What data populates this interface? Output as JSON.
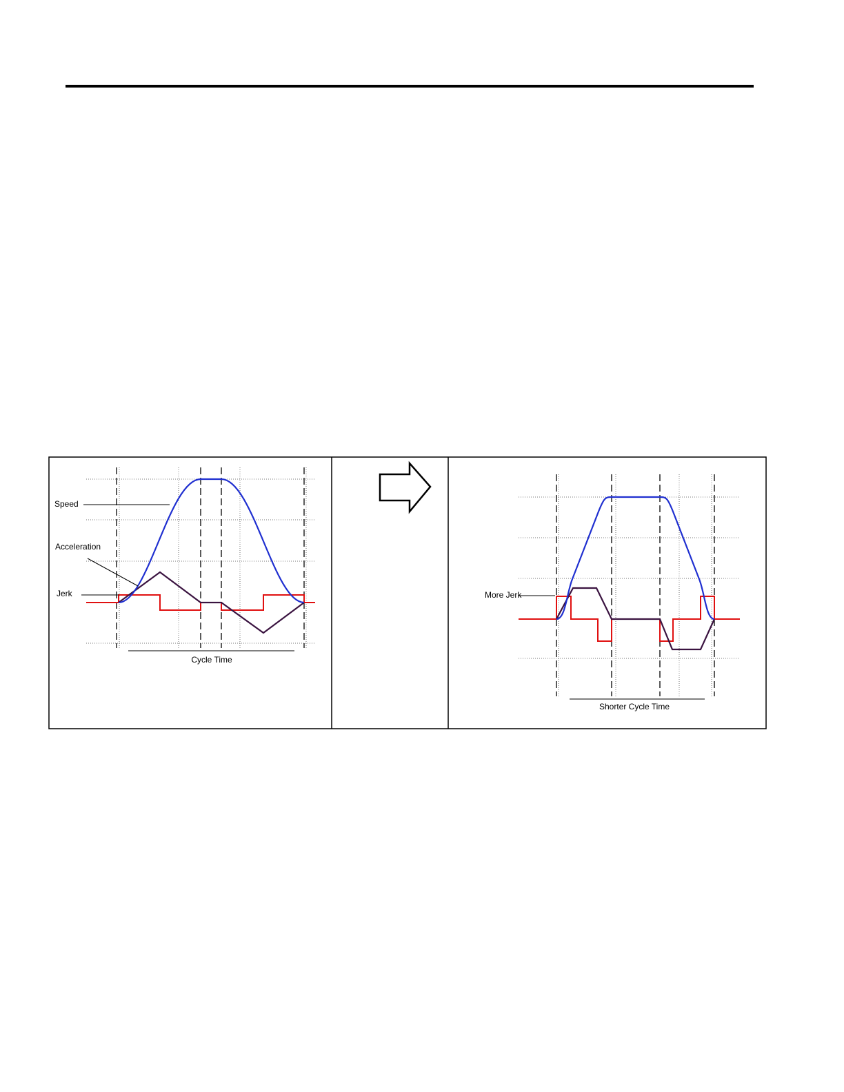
{
  "diagram": {
    "left": {
      "speed_label": "Speed",
      "acceleration_label": "Acceleration",
      "jerk_label": "Jerk",
      "caption": "Cycle Time"
    },
    "right": {
      "jerk_label": "More Jerk",
      "caption": "Shorter Cycle Time"
    }
  }
}
